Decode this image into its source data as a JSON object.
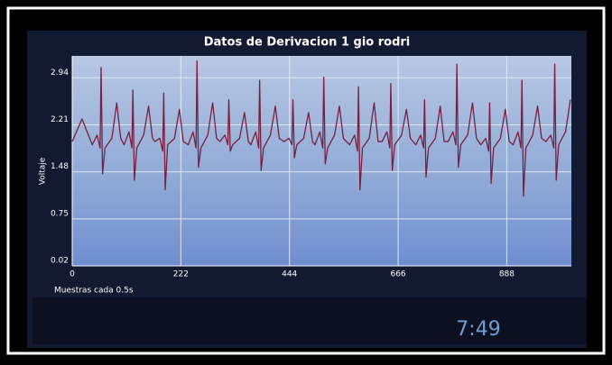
{
  "chart_data": {
    "type": "line",
    "title": "Datos de Derivacion 1 gio rodri",
    "ylabel": "Voltaje",
    "xlabel": "Muestras cada 0.5s",
    "color": "#7a1f3d",
    "grid": true,
    "xlim": [
      0,
      1020
    ],
    "xticks": [
      0,
      222,
      444,
      666,
      888
    ],
    "ylim": [
      0.02,
      3.28
    ],
    "yticks": [
      0.02,
      0.75,
      1.48,
      2.21,
      2.94
    ],
    "x": [
      0,
      20,
      41,
      51,
      57,
      59,
      62,
      67,
      81,
      91,
      99,
      106,
      116,
      122,
      124,
      127,
      132,
      146,
      156,
      164,
      169,
      179,
      185,
      187,
      190,
      195,
      209,
      219,
      227,
      237,
      247,
      253,
      255,
      258,
      263,
      277,
      287,
      295,
      302,
      312,
      318,
      320,
      323,
      328,
      342,
      352,
      360,
      365,
      375,
      381,
      383,
      386,
      391,
      405,
      415,
      423,
      433,
      443,
      449,
      451,
      454,
      459,
      473,
      483,
      491,
      496,
      506,
      512,
      514,
      517,
      522,
      536,
      546,
      554,
      567,
      577,
      583,
      585,
      588,
      593,
      607,
      617,
      625,
      633,
      643,
      649,
      651,
      654,
      659,
      673,
      683,
      691,
      702,
      712,
      718,
      720,
      723,
      728,
      742,
      752,
      760,
      768,
      778,
      784,
      786,
      789,
      794,
      808,
      818,
      826,
      835,
      845,
      851,
      853,
      856,
      861,
      875,
      885,
      893,
      901,
      911,
      917,
      919,
      922,
      927,
      941,
      951,
      959,
      968,
      978,
      984,
      986,
      989,
      994,
      1008,
      1018
    ],
    "values": [
      1.95,
      2.3,
      1.9,
      2.05,
      1.85,
      3.1,
      1.45,
      1.85,
      2.0,
      2.55,
      2.0,
      1.9,
      2.1,
      1.85,
      2.75,
      1.35,
      1.85,
      2.05,
      2.5,
      2.0,
      1.95,
      2.0,
      1.8,
      2.7,
      1.2,
      1.9,
      2.0,
      2.45,
      1.95,
      1.9,
      2.1,
      1.85,
      3.2,
      1.55,
      1.85,
      2.05,
      2.55,
      2.0,
      1.95,
      2.05,
      1.9,
      2.6,
      1.8,
      1.9,
      2.0,
      2.4,
      1.95,
      1.9,
      2.1,
      1.85,
      2.9,
      1.5,
      1.85,
      2.05,
      2.5,
      2.0,
      1.95,
      2.0,
      1.9,
      2.6,
      1.7,
      1.9,
      2.0,
      2.4,
      1.95,
      1.9,
      2.1,
      1.85,
      2.95,
      1.6,
      1.85,
      2.05,
      2.5,
      2.0,
      1.9,
      2.05,
      1.8,
      2.8,
      1.2,
      1.85,
      2.0,
      2.55,
      1.95,
      1.95,
      2.1,
      1.85,
      2.85,
      1.5,
      1.9,
      2.05,
      2.45,
      2.0,
      1.9,
      2.05,
      1.85,
      2.6,
      1.4,
      1.85,
      2.0,
      2.5,
      1.95,
      1.95,
      2.1,
      1.9,
      3.15,
      1.55,
      1.9,
      2.05,
      2.55,
      2.0,
      1.9,
      2.0,
      1.8,
      2.55,
      1.3,
      1.85,
      2.0,
      2.45,
      1.95,
      1.9,
      2.1,
      1.85,
      2.9,
      1.1,
      1.85,
      2.05,
      2.5,
      2.0,
      1.95,
      2.05,
      1.85,
      3.15,
      1.35,
      1.9,
      2.1,
      2.6
    ]
  },
  "status_bar": {
    "time": "7:49"
  }
}
